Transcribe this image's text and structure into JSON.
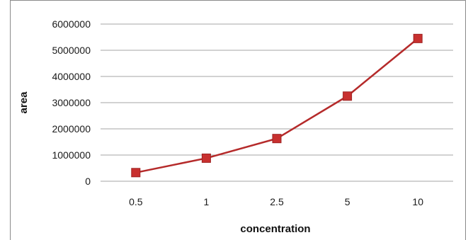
{
  "chart_data": {
    "type": "line",
    "categories": [
      "0.5",
      "1",
      "2.5",
      "5",
      "10"
    ],
    "series": [
      {
        "values": [
          330000,
          880000,
          1630000,
          3250000,
          5450000
        ]
      }
    ],
    "title": "",
    "xlabel": "concentration",
    "ylabel": "area",
    "ylim": [
      0,
      6000000
    ],
    "yticks": [
      "0",
      "1000000",
      "2000000",
      "3000000",
      "4000000",
      "5000000",
      "6000000"
    ],
    "grid": true,
    "legend": "none",
    "colors": {
      "line": "#b52a2a",
      "marker": "#c8302f",
      "grid": "#a6a6a6"
    }
  }
}
